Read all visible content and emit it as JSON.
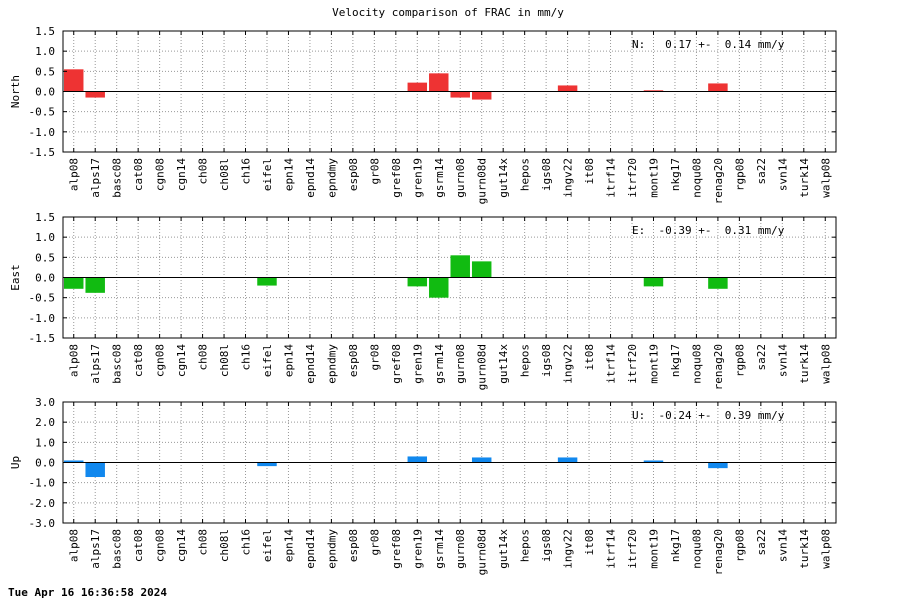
{
  "footer": {
    "timestamp": "Tue Apr 16 16:36:58 2024"
  },
  "chart_data": {
    "type": "bar",
    "title": "Velocity comparison of FRAC in mm/y",
    "categories": [
      "alp08",
      "alps17",
      "basc08",
      "cat08",
      "cgn08",
      "cgn14",
      "ch08",
      "ch08l",
      "ch16",
      "eifel",
      "epn14",
      "epnd14",
      "epndmy",
      "esp08",
      "gr08",
      "gref08",
      "gren19",
      "gsrm14",
      "gurn08",
      "gurn08d",
      "gut14x",
      "hepos",
      "igs08",
      "ingv22",
      "it08",
      "itrf14",
      "itrf20",
      "mont19",
      "nkg17",
      "noqu08",
      "renag20",
      "rgp08",
      "sa22",
      "svn14",
      "turk14",
      "walp08"
    ],
    "panels": [
      {
        "name": "north",
        "ylabel": "North",
        "ylim": [
          -1.5,
          1.5
        ],
        "yticks": [
          -1.5,
          -1.0,
          -0.5,
          0.0,
          0.5,
          1.0,
          1.5
        ],
        "ytick_labels": [
          "-1.5",
          "-1.0",
          "-0.5",
          "0.0",
          "0.5",
          "1.0",
          "1.5"
        ],
        "grid": true,
        "color": "#ee3333",
        "annotation": "N:   0.17 +-  0.14 mm/y",
        "values": [
          0.55,
          -0.15,
          0,
          0,
          0,
          0,
          0,
          0,
          0,
          0,
          0,
          0,
          0,
          0,
          0,
          0,
          0.22,
          0.45,
          -0.15,
          -0.2,
          0,
          0,
          0,
          0.15,
          0,
          0,
          0,
          0.03,
          0,
          0,
          0.2,
          0,
          0,
          0,
          0,
          0
        ]
      },
      {
        "name": "east",
        "ylabel": "East",
        "ylim": [
          -1.5,
          1.5
        ],
        "yticks": [
          -1.5,
          -1.0,
          -0.5,
          0.0,
          0.5,
          1.0,
          1.5
        ],
        "ytick_labels": [
          "-1.5",
          "-1.0",
          "-0.5",
          "0.0",
          "0.5",
          "1.0",
          "1.5"
        ],
        "grid": true,
        "color": "#11bb11",
        "annotation": "E:  -0.39 +-  0.31 mm/y",
        "values": [
          -0.28,
          -0.38,
          0,
          0,
          0,
          0,
          0,
          0,
          0,
          -0.2,
          0,
          0,
          0,
          0,
          0,
          0,
          -0.22,
          -0.5,
          0.55,
          0.4,
          0,
          0,
          0,
          0,
          0,
          0,
          0,
          -0.22,
          0,
          0,
          -0.28,
          0,
          0,
          0,
          0,
          0
        ]
      },
      {
        "name": "up",
        "ylabel": "Up",
        "ylim": [
          -3.0,
          3.0
        ],
        "yticks": [
          -3.0,
          -2.0,
          -1.0,
          0.0,
          1.0,
          2.0,
          3.0
        ],
        "ytick_labels": [
          "-3.0",
          "-2.0",
          "-1.0",
          "0.0",
          "1.0",
          "2.0",
          "3.0"
        ],
        "grid": true,
        "color": "#1188ee",
        "annotation": "U:  -0.24 +-  0.39 mm/y",
        "values": [
          0.1,
          -0.72,
          0,
          0,
          0,
          0,
          0,
          0,
          0,
          -0.18,
          0,
          0,
          0,
          0,
          0,
          0,
          0.3,
          0,
          0,
          0.25,
          0,
          0,
          0,
          0.25,
          0,
          0,
          0,
          0.1,
          0,
          0,
          -0.28,
          0,
          0,
          0,
          0,
          0
        ]
      }
    ]
  }
}
